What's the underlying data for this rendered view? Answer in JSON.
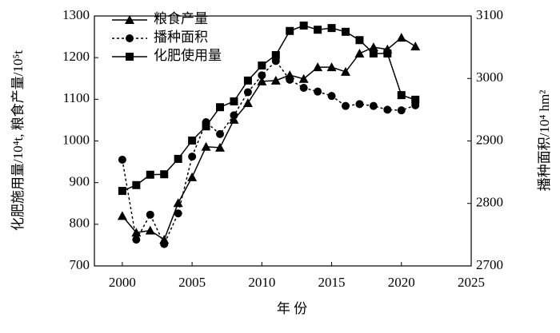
{
  "chart_data": {
    "type": "line",
    "x": [
      2000,
      2001,
      2002,
      2003,
      2004,
      2005,
      2006,
      2007,
      2008,
      2009,
      2010,
      2011,
      2012,
      2013,
      2014,
      2015,
      2016,
      2017,
      2018,
      2019,
      2020,
      2021
    ],
    "series": [
      {
        "name": "粮食产量",
        "color": "#000000",
        "marker": "triangle",
        "dash": false,
        "values": [
          820,
          780,
          785,
          763,
          851,
          913,
          986,
          984,
          1051,
          1091,
          1143,
          1145,
          1158,
          1149,
          1177,
          1177,
          1166,
          1210,
          1225,
          1220,
          1248,
          1227
        ]
      },
      {
        "name": "播种面积",
        "color": "#000000",
        "marker": "circle",
        "dash": true,
        "axis": "y2",
        "values": [
          2870,
          2742,
          2782,
          2735,
          2784,
          2875,
          2930,
          2911,
          2941,
          2978,
          3005,
          3028,
          2998,
          2985,
          2979,
          2972,
          2956,
          2959,
          2956,
          2950,
          2949,
          2957
        ]
      },
      {
        "name": "化肥使用量",
        "color": "#000000",
        "marker": "square",
        "dash": false,
        "values": [
          880,
          894,
          919,
          920,
          957,
          1001,
          1035,
          1081,
          1095,
          1145,
          1181,
          1206,
          1264,
          1277,
          1267,
          1271,
          1262,
          1242,
          1210,
          1210,
          1110,
          1099
        ]
      }
    ],
    "xlabel": "年 份",
    "ylabel": "化肥施用量/10⁴t, 粮食产量/10⁵t",
    "y2label": "播种面积/10⁴ hm²",
    "xlim": [
      1998,
      2025
    ],
    "xticks": [
      2000,
      2005,
      2010,
      2015,
      2020,
      2025
    ],
    "ylim": [
      700,
      1300
    ],
    "yticks": [
      700,
      800,
      900,
      1000,
      1100,
      1200,
      1300
    ],
    "y2lim": [
      2700,
      3100
    ],
    "y2ticks": [
      2700,
      2800,
      2900,
      3000,
      3100
    ],
    "legend": "top-left"
  }
}
